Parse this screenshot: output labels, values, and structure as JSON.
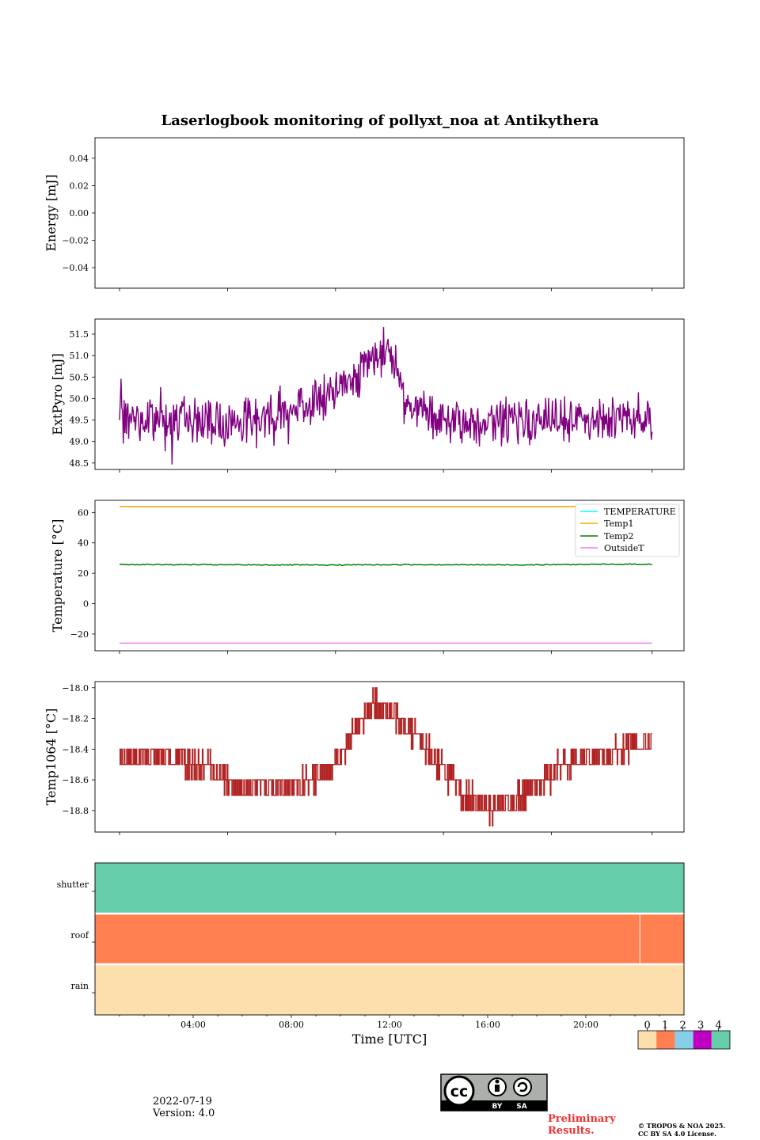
{
  "figure": {
    "title": "Laserlogbook monitoring of pollyxt_noa at Antikythera",
    "date": "2022-07-19",
    "version": "Version: 4.0",
    "preliminary": "Preliminary\nResults.",
    "copyright": "© TROPOS & NOA 2025.\nCC BY SA 4.0 License.",
    "license_badge": {
      "by": "BY",
      "sa": "SA"
    },
    "colors": {
      "purple": "#800080",
      "orange": "#ffa500",
      "green": "#008000",
      "violet": "#ee82ee",
      "cyan": "#00ffff",
      "brown": "#b22222"
    }
  },
  "chart_data": [
    {
      "type": "line",
      "ylabel": "Energy [mJ]",
      "ylim": [
        -0.055,
        0.055
      ],
      "yticks": [
        0.04,
        0.02,
        0.0,
        -0.02,
        -0.04
      ],
      "ytick_labels": [
        "0.04",
        "0.02",
        "0.00",
        "−0.02",
        "−0.04"
      ],
      "series": []
    },
    {
      "type": "line",
      "ylabel": "ExtPyro [mJ]",
      "ylim": [
        48.35,
        51.85
      ],
      "yticks": [
        51.5,
        51.0,
        50.5,
        50.0,
        49.5,
        49.0,
        48.5
      ],
      "ytick_labels": [
        "51.5",
        "51.0",
        "50.5",
        "50.0",
        "49.5",
        "49.0",
        "48.5"
      ],
      "x_hours": [
        1,
        2,
        3,
        4,
        5,
        6,
        7,
        8,
        9,
        10,
        10.5,
        11,
        11.5,
        12,
        12.5,
        13,
        14,
        15,
        16,
        17,
        18,
        19,
        20,
        21,
        22,
        22.7
      ],
      "values": [
        49.5,
        49.5,
        49.55,
        49.5,
        49.45,
        49.5,
        49.6,
        49.8,
        49.95,
        50.2,
        50.5,
        50.75,
        51.0,
        51.2,
        50.4,
        49.7,
        49.45,
        49.4,
        49.45,
        49.5,
        49.45,
        49.55,
        49.5,
        49.55,
        49.6,
        49.5
      ],
      "noise_amplitude": 0.8,
      "series_color": "#800080"
    },
    {
      "type": "line",
      "ylabel": "Temperature [°C]",
      "ylim": [
        -31,
        68
      ],
      "yticks": [
        60,
        40,
        20,
        0,
        -20
      ],
      "ytick_labels": [
        "60",
        "40",
        "20",
        "0",
        "−20"
      ],
      "legend": {
        "placement": "upper right",
        "entries": [
          "TEMPERATURE",
          "Temp1",
          "Temp2",
          "OutsideT"
        ]
      },
      "series": [
        {
          "name": "TEMPERATURE",
          "color": "#00ffff",
          "x_hours": [],
          "values": []
        },
        {
          "name": "Temp1",
          "color": "#ffa500",
          "x_hours": [
            1,
            22.7
          ],
          "values": [
            64,
            64
          ]
        },
        {
          "name": "Temp2",
          "color": "#008000",
          "x_hours": [
            1,
            5,
            9,
            13,
            17,
            21,
            22.7
          ],
          "values": [
            25.8,
            25.6,
            25.4,
            25.7,
            25.5,
            25.9,
            26.0
          ]
        },
        {
          "name": "OutsideT",
          "color": "#ee82ee",
          "x_hours": [
            1,
            22.7
          ],
          "values": [
            -26,
            -26
          ]
        }
      ]
    },
    {
      "type": "line",
      "ylabel": "Temp1064 [°C]",
      "ylim": [
        -18.94,
        -17.96
      ],
      "yticks": [
        -18.0,
        -18.2,
        -18.4,
        -18.6,
        -18.8
      ],
      "ytick_labels": [
        "−18.0",
        "−18.2",
        "−18.4",
        "−18.6",
        "−18.8"
      ],
      "x_hours": [
        1,
        2,
        3,
        4,
        5,
        6,
        7,
        8,
        9,
        10,
        10.5,
        11,
        11.5,
        12,
        12.5,
        13,
        14,
        15,
        16,
        17,
        18,
        19,
        20,
        21,
        22,
        22.7
      ],
      "values": [
        -18.45,
        -18.45,
        -18.45,
        -18.5,
        -18.55,
        -18.65,
        -18.65,
        -18.65,
        -18.6,
        -18.45,
        -18.3,
        -18.15,
        -18.12,
        -18.15,
        -18.2,
        -18.3,
        -18.5,
        -18.7,
        -18.78,
        -18.75,
        -18.65,
        -18.5,
        -18.45,
        -18.45,
        -18.35,
        -18.35
      ],
      "quantization": 0.1,
      "series_color": "#b22222"
    },
    {
      "type": "heatmap",
      "xlabel": "Time [UTC]",
      "xlim_hours": [
        0,
        24
      ],
      "xticks_hours": [
        4,
        8,
        12,
        16,
        20
      ],
      "xtick_labels": [
        "04:00",
        "08:00",
        "12:00",
        "16:00",
        "20:00"
      ],
      "rows": [
        {
          "label": "shutter",
          "value": 4
        },
        {
          "label": "roof",
          "value": 1
        },
        {
          "label": "rain",
          "value": 0
        }
      ],
      "roof_gap_hour": 22.2,
      "colorbar": {
        "ticks": [
          "0",
          "1",
          "2",
          "3",
          "4"
        ],
        "colors": [
          "#fddfad",
          "#ff7f50",
          "#87ceeb",
          "#c000c0",
          "#66cdaa"
        ]
      }
    }
  ]
}
